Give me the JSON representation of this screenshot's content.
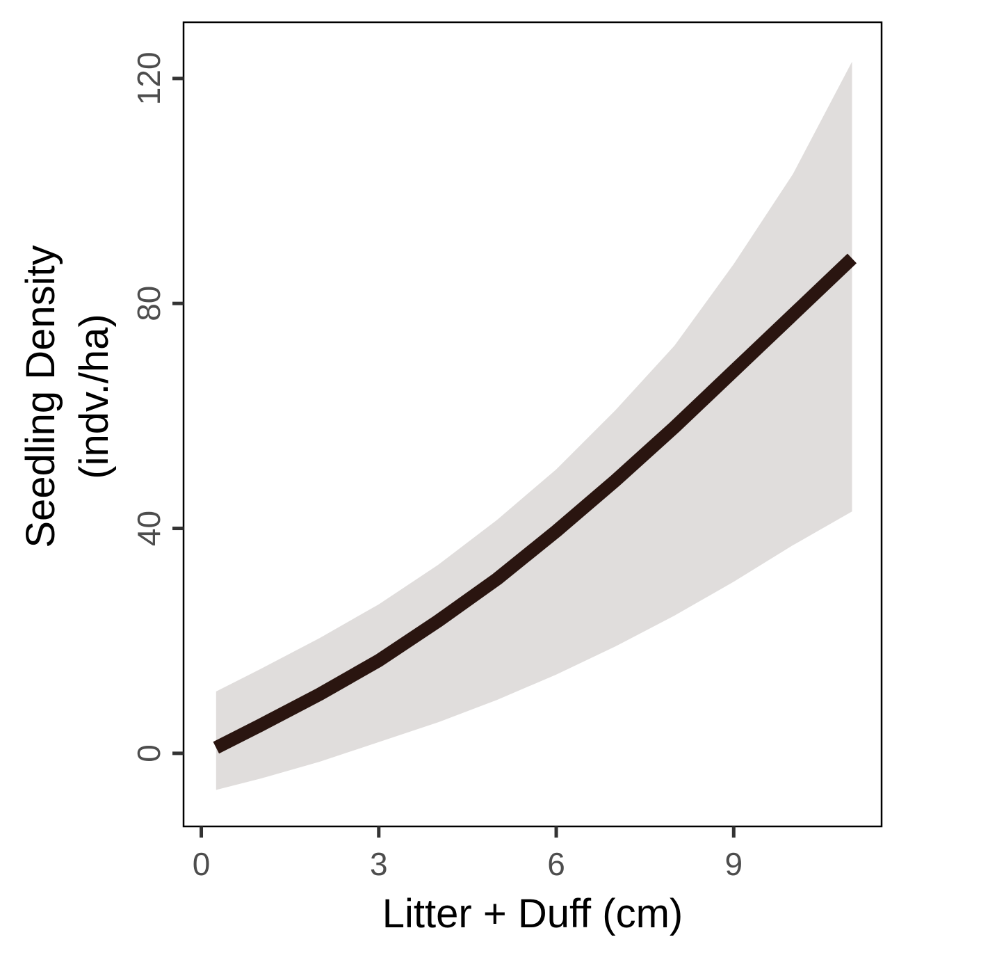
{
  "chart_data": {
    "type": "line",
    "xlabel": "Litter + Duff (cm)",
    "ylabel_lines": [
      "Seedling Density",
      "(indv./ha)"
    ],
    "xlim": [
      -0.3,
      11.5
    ],
    "ylim": [
      -13,
      130
    ],
    "x_ticks": [
      0,
      3,
      6,
      9
    ],
    "y_ticks": [
      0,
      40,
      80,
      120
    ],
    "grid": false,
    "legend": "none",
    "colors": {
      "line": "#2a1510",
      "band": "#e0dddc",
      "frame": "#000000",
      "tick": "#333333"
    },
    "series": [
      {
        "x": [
          0.25,
          1,
          2,
          3,
          4,
          5,
          6,
          7,
          8,
          9,
          10,
          11
        ],
        "y": [
          1.0,
          5.0,
          10.5,
          16.5,
          23.5,
          31.0,
          39.5,
          48.5,
          58.0,
          68.0,
          78.0,
          88.0
        ],
        "lower": [
          -6.5,
          -4.5,
          -1.5,
          2.0,
          5.5,
          9.5,
          14.0,
          19.0,
          24.5,
          30.5,
          37.0,
          43.0
        ],
        "upper": [
          11.0,
          15.0,
          20.5,
          26.5,
          33.5,
          41.5,
          50.5,
          61.0,
          72.5,
          87.0,
          103.0,
          123.0
        ]
      }
    ]
  }
}
